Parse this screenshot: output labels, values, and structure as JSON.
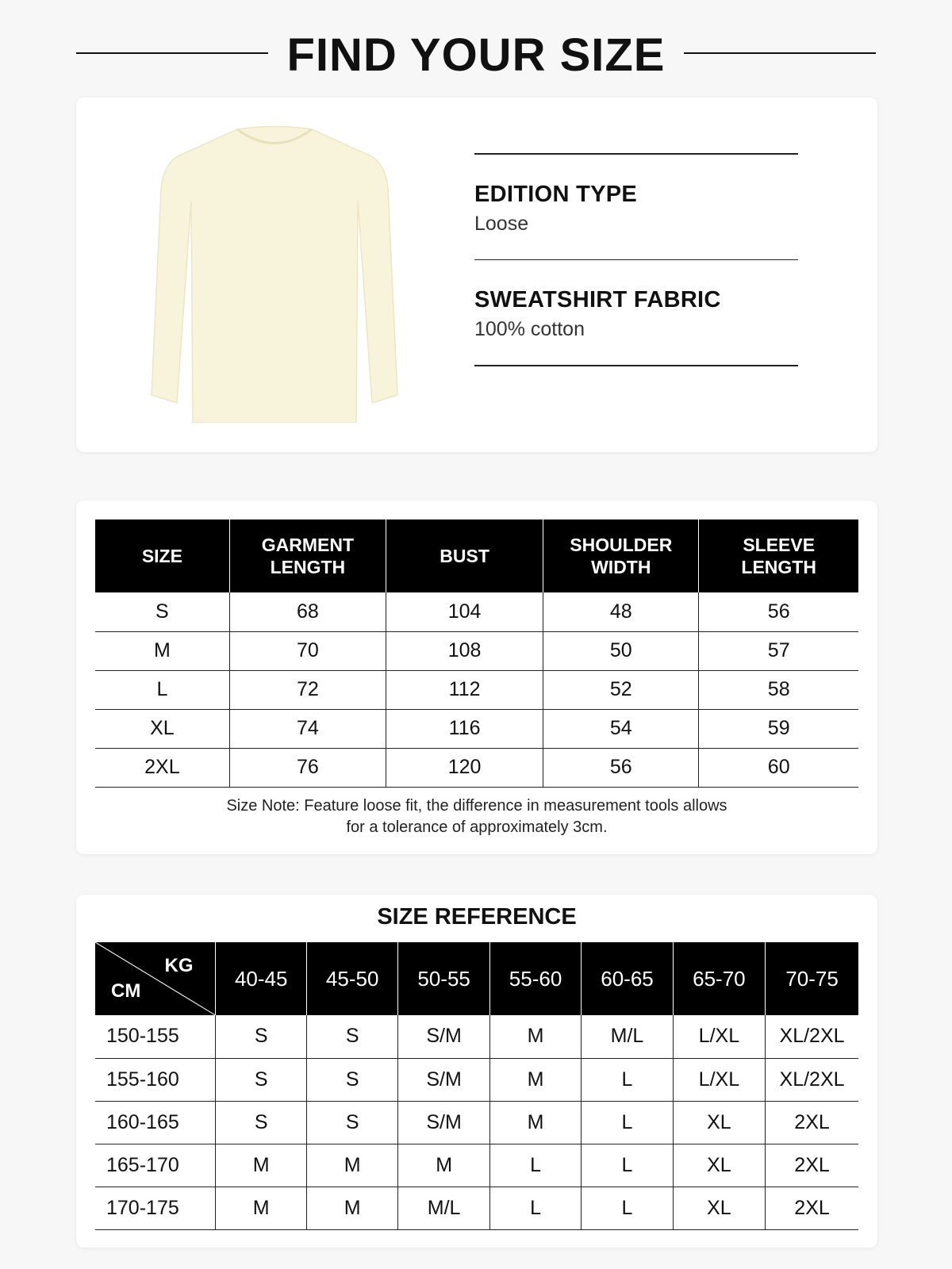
{
  "title": "FIND YOUR SIZE",
  "product": {
    "image": "long-sleeve-sweatshirt",
    "color": "#f8f4dc",
    "specs": [
      {
        "label": "EDITION TYPE",
        "value": "Loose"
      },
      {
        "label": "SWEATSHIRT FABRIC",
        "value": "100% cotton"
      }
    ]
  },
  "size_chart": {
    "headers": [
      "SIZE",
      "GARMENT LENGTH",
      "BUST",
      "SHOULDER WIDTH",
      "SLEEVE LENGTH"
    ],
    "rows": [
      [
        "S",
        "68",
        "104",
        "48",
        "56"
      ],
      [
        "M",
        "70",
        "108",
        "50",
        "57"
      ],
      [
        "L",
        "72",
        "112",
        "52",
        "58"
      ],
      [
        "XL",
        "74",
        "116",
        "54",
        "59"
      ],
      [
        "2XL",
        "76",
        "120",
        "56",
        "60"
      ]
    ],
    "note_line1": "Size Note: Feature loose fit, the difference in measurement tools allows",
    "note_line2": "for a tolerance of approximately 3cm."
  },
  "size_reference": {
    "title": "SIZE REFERENCE",
    "corner_top": "KG",
    "corner_bottom": "CM",
    "headers": [
      "40-45",
      "45-50",
      "50-55",
      "55-60",
      "60-65",
      "65-70",
      "70-75"
    ],
    "rows": [
      [
        "150-155",
        "S",
        "S",
        "S/M",
        "M",
        "M/L",
        "L/XL",
        "XL/2XL"
      ],
      [
        "155-160",
        "S",
        "S",
        "S/M",
        "M",
        "L",
        "L/XL",
        "XL/2XL"
      ],
      [
        "160-165",
        "S",
        "S",
        "S/M",
        "M",
        "L",
        "XL",
        "2XL"
      ],
      [
        "165-170",
        "M",
        "M",
        "M",
        "L",
        "L",
        "XL",
        "2XL"
      ],
      [
        "170-175",
        "M",
        "M",
        "M/L",
        "L",
        "L",
        "XL",
        "2XL"
      ]
    ]
  }
}
